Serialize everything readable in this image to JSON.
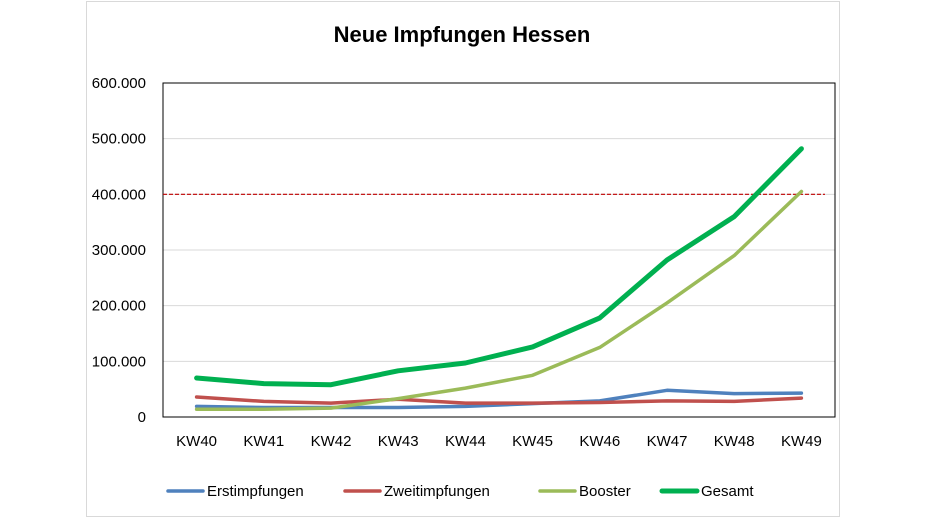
{
  "chart_data": {
    "type": "line",
    "title": "Neue Impfungen Hessen",
    "xlabel": "",
    "ylabel": "",
    "categories": [
      "KW40",
      "KW41",
      "KW42",
      "KW43",
      "KW44",
      "KW45",
      "KW46",
      "KW47",
      "KW48",
      "KW49"
    ],
    "ylim": [
      0,
      600000
    ],
    "yticks": [
      0,
      100000,
      200000,
      300000,
      400000,
      500000,
      600000
    ],
    "ytick_labels": [
      "0",
      "100.000",
      "200.000",
      "300.000",
      "400.000",
      "500.000",
      "600.000"
    ],
    "grid": "horizontal",
    "legend_position": "bottom",
    "reference_line": {
      "value": 400000,
      "color": "#c00000",
      "style": "dashed"
    },
    "series": [
      {
        "name": "Erstimpfungen",
        "color": "#4f81bd",
        "values": [
          19000,
          17000,
          17000,
          17000,
          19000,
          24000,
          29000,
          48000,
          42000,
          43000
        ]
      },
      {
        "name": "Zweitimpfungen",
        "color": "#c0504d",
        "values": [
          36000,
          28000,
          25000,
          32000,
          25000,
          25000,
          26000,
          29000,
          28000,
          34000
        ]
      },
      {
        "name": "Booster",
        "color": "#9bbb59",
        "values": [
          14000,
          14000,
          16000,
          33000,
          52000,
          75000,
          125000,
          205000,
          290000,
          405000
        ]
      },
      {
        "name": "Gesamt",
        "color": "#00b050",
        "values": [
          70000,
          60000,
          58000,
          83000,
          97000,
          126000,
          178000,
          282000,
          360000,
          482000
        ]
      }
    ]
  }
}
